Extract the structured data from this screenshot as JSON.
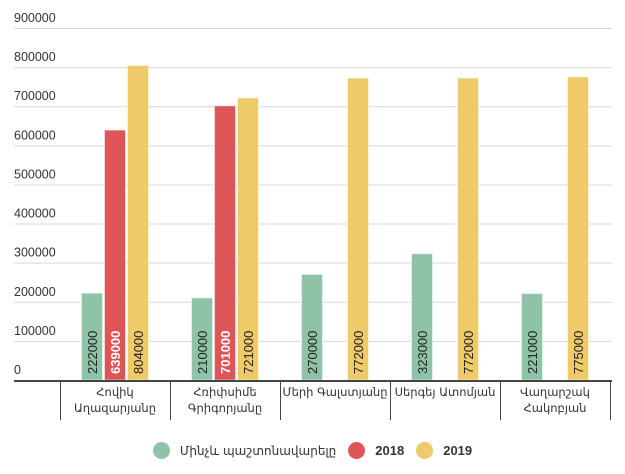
{
  "chart_data": {
    "type": "bar",
    "title": "",
    "xlabel": "",
    "ylabel": "",
    "ylim": [
      0,
      900000
    ],
    "yticks": [
      "0",
      "100000",
      "200000",
      "300000",
      "400000",
      "500000",
      "600000",
      "700000",
      "800000",
      "900000"
    ],
    "grid": true,
    "legend_position": "bottom",
    "categories": [
      [
        "Հովիկ",
        "Աղազարյանը"
      ],
      [
        "Հռիփսիմե",
        "Գրիգորյանը"
      ],
      [
        "Մերի Գալստյանը"
      ],
      [
        "Սերգեյ Ատոմյան"
      ],
      [
        "Վաղարշակ",
        "Հակոբյան"
      ]
    ],
    "series": [
      {
        "name": "Մինչև պաշտոնավարելը",
        "color": "#8fc3a8",
        "label_style": "dark",
        "values": [
          222000,
          210000,
          270000,
          323000,
          221000
        ]
      },
      {
        "name": "2018",
        "color": "#de5558",
        "label_style": "light",
        "values": [
          639000,
          701000,
          null,
          null,
          null
        ]
      },
      {
        "name": "2019",
        "color": "#efca68",
        "label_style": "dark",
        "values": [
          804000,
          721000,
          772000,
          772000,
          775000
        ]
      }
    ]
  },
  "legend": {
    "items": [
      {
        "label": "Մինչև պաշտոնավարելը",
        "color": "#8fc3a8"
      },
      {
        "label": "2018",
        "color": "#de5558"
      },
      {
        "label": "2019",
        "color": "#efca68"
      }
    ]
  }
}
